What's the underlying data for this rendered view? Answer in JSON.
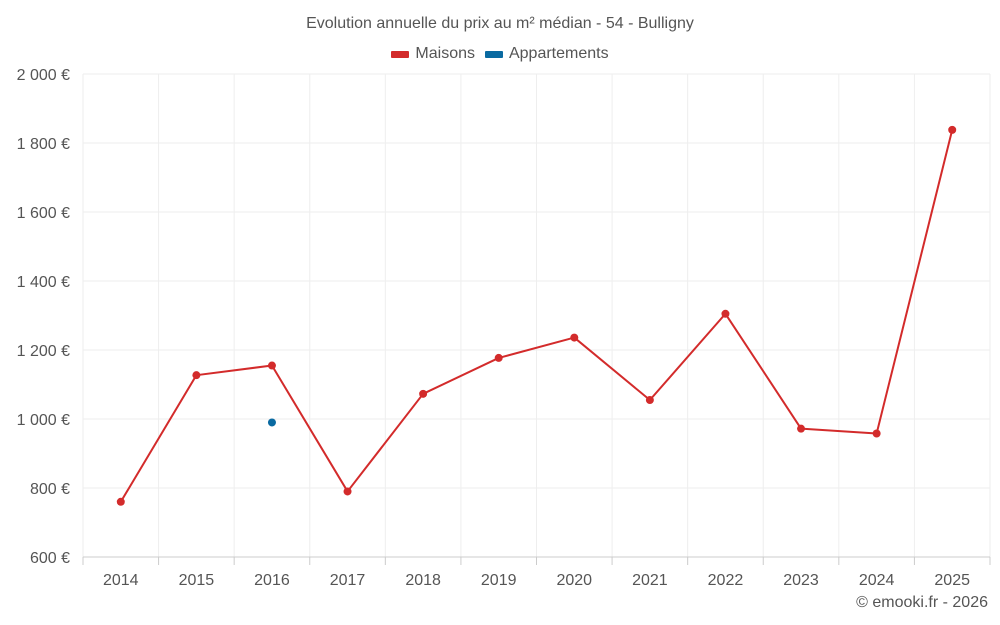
{
  "chart_data": {
    "type": "line",
    "title": "Evolution annuelle du prix au m² médian - 54 - Bulligny",
    "xlabel": "",
    "ylabel": "",
    "categories": [
      "2014",
      "2015",
      "2016",
      "2017",
      "2018",
      "2019",
      "2020",
      "2021",
      "2022",
      "2023",
      "2024",
      "2025"
    ],
    "ylim": [
      600,
      2000
    ],
    "yticks": [
      600,
      800,
      1000,
      1200,
      1400,
      1600,
      1800,
      2000
    ],
    "ytick_labels": [
      "600 €",
      "800 €",
      "1 000 €",
      "1 200 €",
      "1 400 €",
      "1 600 €",
      "1 800 €",
      "2 000 €"
    ],
    "grid": true,
    "legend_position": "top-center",
    "series": [
      {
        "name": "Maisons",
        "color": "#d32b2b",
        "values": [
          760,
          1127,
          1155,
          790,
          1073,
          1177,
          1236,
          1055,
          1305,
          972,
          958,
          1838
        ]
      },
      {
        "name": "Appartements",
        "color": "#0a6aa1",
        "values": [
          null,
          null,
          990,
          null,
          null,
          null,
          null,
          null,
          null,
          null,
          null,
          null
        ]
      }
    ]
  },
  "credit": "© emooki.fr - 2026"
}
